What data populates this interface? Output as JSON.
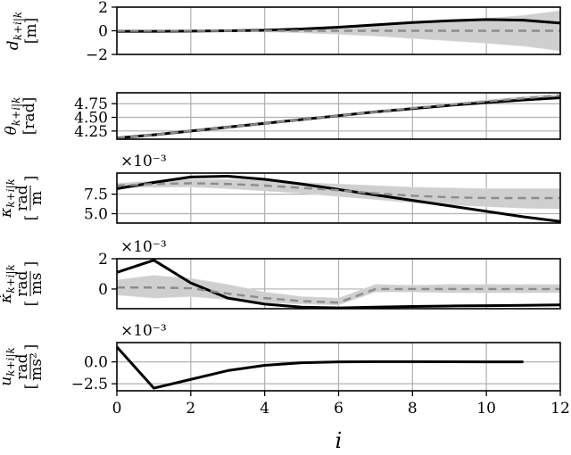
{
  "chart_data": [
    {
      "type": "line",
      "ylabel": "d_{k+i|k} [m]",
      "ylabel_parts": [
        "d",
        "k+i|k",
        "[m]"
      ],
      "x": [
        0,
        1,
        2,
        3,
        4,
        5,
        6,
        7,
        8,
        9,
        10,
        11,
        12
      ],
      "ylim": [
        -2,
        2
      ],
      "yticks": [
        -2,
        0,
        2
      ],
      "ytick_labels": [
        "−2",
        "0",
        "2"
      ],
      "multiplier": "",
      "grid": true,
      "series": [
        {
          "role": "prediction",
          "style": "solid black",
          "values": [
            -0.05,
            -0.05,
            -0.03,
            0.0,
            0.05,
            0.15,
            0.3,
            0.5,
            0.7,
            0.85,
            0.95,
            0.9,
            0.65
          ]
        },
        {
          "role": "reference",
          "style": "dashed gray",
          "values": [
            0,
            0,
            0,
            0,
            0,
            0,
            0,
            0,
            0,
            0,
            0,
            0,
            0
          ]
        }
      ],
      "band": {
        "lower": [
          -0.05,
          -0.05,
          -0.05,
          -0.06,
          -0.1,
          -0.18,
          -0.3,
          -0.45,
          -0.65,
          -0.85,
          -1.05,
          -1.3,
          -1.7
        ],
        "upper": [
          0.05,
          0.05,
          0.05,
          0.06,
          0.1,
          0.18,
          0.3,
          0.45,
          0.65,
          0.85,
          1.05,
          1.3,
          1.7
        ]
      }
    },
    {
      "type": "line",
      "ylabel": "θ_{k+i|k} [rad]",
      "ylabel_parts": [
        "θ",
        "k+i|k",
        "[rad]"
      ],
      "x": [
        0,
        1,
        2,
        3,
        4,
        5,
        6,
        7,
        8,
        9,
        10,
        11,
        12
      ],
      "ylim": [
        4.1,
        4.95
      ],
      "yticks": [
        4.25,
        4.5,
        4.75
      ],
      "ytick_labels": [
        "4.25",
        "4.50",
        "4.75"
      ],
      "multiplier": "",
      "grid": true,
      "series": [
        {
          "role": "prediction",
          "style": "solid black",
          "values": [
            4.12,
            4.18,
            4.25,
            4.32,
            4.39,
            4.46,
            4.53,
            4.6,
            4.66,
            4.72,
            4.77,
            4.82,
            4.86
          ]
        },
        {
          "role": "reference",
          "style": "dashed gray",
          "values": [
            4.12,
            4.18,
            4.25,
            4.32,
            4.39,
            4.46,
            4.53,
            4.6,
            4.67,
            4.73,
            4.79,
            4.85,
            4.9
          ]
        }
      ],
      "band": {
        "lower": [
          4.12,
          4.18,
          4.25,
          4.32,
          4.39,
          4.46,
          4.53,
          4.59,
          4.65,
          4.7,
          4.75,
          4.79,
          4.83
        ],
        "upper": [
          4.12,
          4.18,
          4.25,
          4.32,
          4.39,
          4.46,
          4.53,
          4.61,
          4.68,
          4.75,
          4.82,
          4.88,
          4.93
        ]
      }
    },
    {
      "type": "line",
      "ylabel": "κ_{k+i|k} [rad/m]",
      "ylabel_parts": [
        "κ",
        "k+i|k",
        "rad",
        "m"
      ],
      "x": [
        0,
        1,
        2,
        3,
        4,
        5,
        6,
        7,
        8,
        9,
        10,
        11,
        12
      ],
      "ylim": [
        3.8,
        10.2
      ],
      "yticks": [
        5.0,
        7.5
      ],
      "ytick_labels": [
        "5.0",
        "7.5"
      ],
      "multiplier": "×10⁻³",
      "grid": true,
      "series": [
        {
          "role": "prediction",
          "style": "solid black",
          "values": [
            8.2,
            9.0,
            9.7,
            9.8,
            9.4,
            8.8,
            8.1,
            7.4,
            6.7,
            6.0,
            5.3,
            4.6,
            4.0
          ]
        },
        {
          "role": "reference",
          "style": "dashed gray",
          "values": [
            8.6,
            8.8,
            8.9,
            8.8,
            8.6,
            8.3,
            8.0,
            7.6,
            7.3,
            7.1,
            7.0,
            7.0,
            7.0
          ]
        }
      ],
      "band": {
        "lower": [
          8.3,
          8.4,
          8.4,
          8.2,
          7.9,
          7.6,
          7.2,
          6.8,
          6.4,
          6.1,
          5.9,
          5.7,
          5.6
        ],
        "upper": [
          8.9,
          9.2,
          9.4,
          9.4,
          9.3,
          9.0,
          8.8,
          8.6,
          8.4,
          8.3,
          8.2,
          8.2,
          8.2
        ]
      }
    },
    {
      "type": "line",
      "ylabel": "κ̇_{k+i|k} [rad/ms]",
      "ylabel_parts": [
        "κ̇",
        "k+i|k",
        "rad",
        "ms"
      ],
      "x": [
        0,
        1,
        2,
        3,
        4,
        5,
        6,
        7,
        8,
        9,
        10,
        11,
        12
      ],
      "ylim": [
        -1.3,
        2.0
      ],
      "yticks": [
        0,
        2
      ],
      "ytick_labels": [
        "0",
        "2"
      ],
      "multiplier": "×10⁻³",
      "grid": true,
      "series": [
        {
          "role": "prediction",
          "style": "solid black",
          "values": [
            1.1,
            1.9,
            0.4,
            -0.6,
            -1.0,
            -1.2,
            -1.25,
            -1.2,
            -1.15,
            -1.12,
            -1.1,
            -1.08,
            -1.05
          ]
        },
        {
          "role": "reference",
          "style": "dashed gray",
          "values": [
            0.1,
            0.1,
            0.05,
            -0.3,
            -0.6,
            -0.8,
            -0.9,
            0.0,
            0.0,
            0.0,
            0.0,
            0.0,
            0.0
          ]
        }
      ],
      "band": {
        "lower": [
          -0.4,
          -0.6,
          -0.5,
          -0.7,
          -0.9,
          -1.0,
          -1.05,
          -0.2,
          -0.2,
          -0.25,
          -0.25,
          -0.25,
          -0.25
        ],
        "upper": [
          0.6,
          0.9,
          0.7,
          0.3,
          -0.2,
          -0.5,
          -0.6,
          0.3,
          0.25,
          0.3,
          0.3,
          0.3,
          0.3
        ]
      }
    },
    {
      "type": "line",
      "ylabel": "u_{k+i|k} [rad/ms²]",
      "ylabel_parts": [
        "u",
        "k+i|k",
        "rad",
        "ms²"
      ],
      "x": [
        0,
        1,
        2,
        3,
        4,
        5,
        6,
        7,
        8,
        9,
        10,
        11
      ],
      "ylim": [
        -3.3,
        2.2
      ],
      "yticks": [
        -2.5,
        0.0
      ],
      "ytick_labels": [
        "−2.5",
        "0.0"
      ],
      "multiplier": "×10⁻³",
      "grid": true,
      "series": [
        {
          "role": "prediction",
          "style": "solid black",
          "values": [
            1.7,
            -3.0,
            -2.0,
            -1.0,
            -0.4,
            -0.1,
            0.0,
            0.02,
            0.02,
            0.01,
            0.0,
            0.0
          ]
        }
      ]
    }
  ],
  "x_axis": {
    "label": "i",
    "xlim": [
      0,
      12
    ],
    "ticks": [
      0,
      2,
      4,
      6,
      8,
      10,
      12
    ],
    "tick_labels": [
      "0",
      "2",
      "4",
      "6",
      "8",
      "10",
      "12"
    ]
  }
}
